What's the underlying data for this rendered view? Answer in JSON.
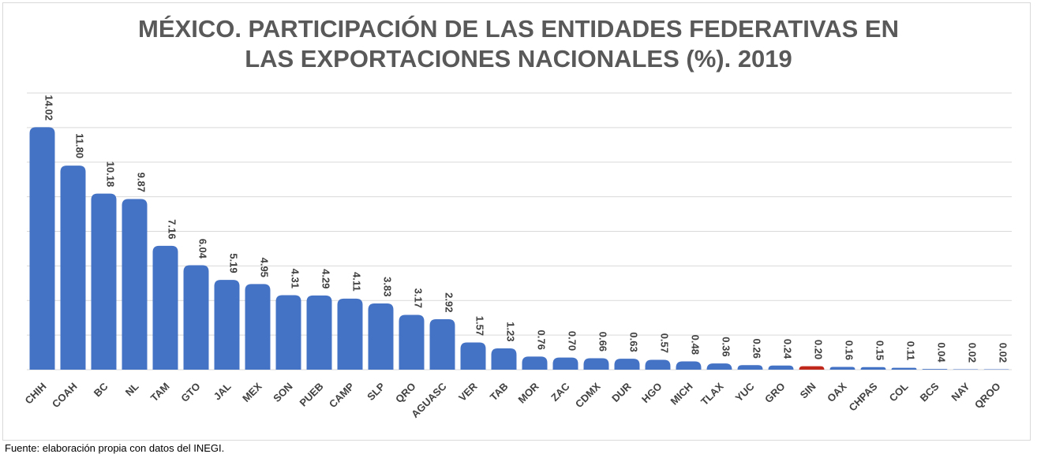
{
  "chart_data": {
    "type": "bar",
    "title": "MÉXICO. PARTICIPACIÓN DE LAS ENTIDADES FEDERATIVAS EN LAS EXPORTACIONES NACIONALES (%). 2019",
    "title_lines": [
      "MÉXICO. PARTICIPACIÓN DE LAS ENTIDADES FEDERATIVAS EN",
      "LAS EXPORTACIONES NACIONALES (%). 2019"
    ],
    "categories": [
      "CHIH",
      "COAH",
      "BC",
      "NL",
      "TAM",
      "GTO",
      "JAL",
      "MEX",
      "SON",
      "PUEB",
      "CAMP",
      "SLP",
      "QRO",
      "AGUASC",
      "VER",
      "TAB",
      "MOR",
      "ZAC",
      "CDMX",
      "DUR",
      "HGO",
      "MICH",
      "TLAX",
      "YUC",
      "GRO",
      "SIN",
      "OAX",
      "CHPAS",
      "COL",
      "BCS",
      "NAY",
      "QROO"
    ],
    "values": [
      14.02,
      11.8,
      10.18,
      9.87,
      7.16,
      6.04,
      5.19,
      4.95,
      4.31,
      4.29,
      4.11,
      3.83,
      3.17,
      2.92,
      1.57,
      1.23,
      0.76,
      0.7,
      0.66,
      0.63,
      0.57,
      0.48,
      0.36,
      0.26,
      0.24,
      0.2,
      0.16,
      0.15,
      0.11,
      0.04,
      0.02,
      0.02
    ],
    "value_labels": [
      "14.02",
      "11.80",
      "10.18",
      "9.87",
      "7.16",
      "6.04",
      "5.19",
      "4.95",
      "4.31",
      "4.29",
      "4.11",
      "3.83",
      "3.17",
      "2.92",
      "1.57",
      "1.23",
      "0.76",
      "0.70",
      "0.66",
      "0.63",
      "0.57",
      "0.48",
      "0.36",
      "0.26",
      "0.24",
      "0.20",
      "0.16",
      "0.15",
      "0.11",
      "0.04",
      "0.02",
      "0.02"
    ],
    "highlight_category": "SIN",
    "xlabel": "",
    "ylabel": "",
    "ylim": [
      0,
      16
    ],
    "ytick_step": 2,
    "grid": true,
    "legend": "none",
    "colors": {
      "bar": "#4472c4",
      "highlight": "#c0281c",
      "grid": "#d9d9d9",
      "text": "#404040",
      "title": "#595959"
    }
  },
  "source": "Fuente: elaboración propia con datos del INEGI."
}
